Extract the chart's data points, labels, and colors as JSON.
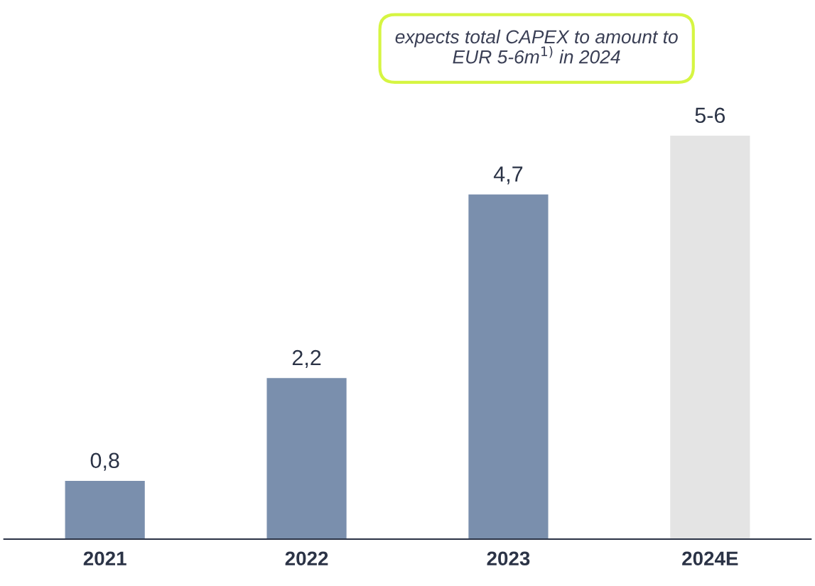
{
  "chart_data": {
    "type": "bar",
    "categories": [
      "2021",
      "2022",
      "2023",
      "2024E"
    ],
    "values": [
      0.8,
      2.2,
      4.7,
      5.5
    ],
    "colors": [
      "#7a8fad",
      "#7a8fad",
      "#7a8fad",
      "#e4e4e4"
    ],
    "value_labels": [
      "0,8",
      "2,2",
      "4,7",
      "5-6"
    ],
    "tick_labels": "x",
    "grid": false,
    "annotations": [
      "expects total CAPEX to amount to EUR 5-6m$^{1)}$ in 2024"
    ]
  }
}
